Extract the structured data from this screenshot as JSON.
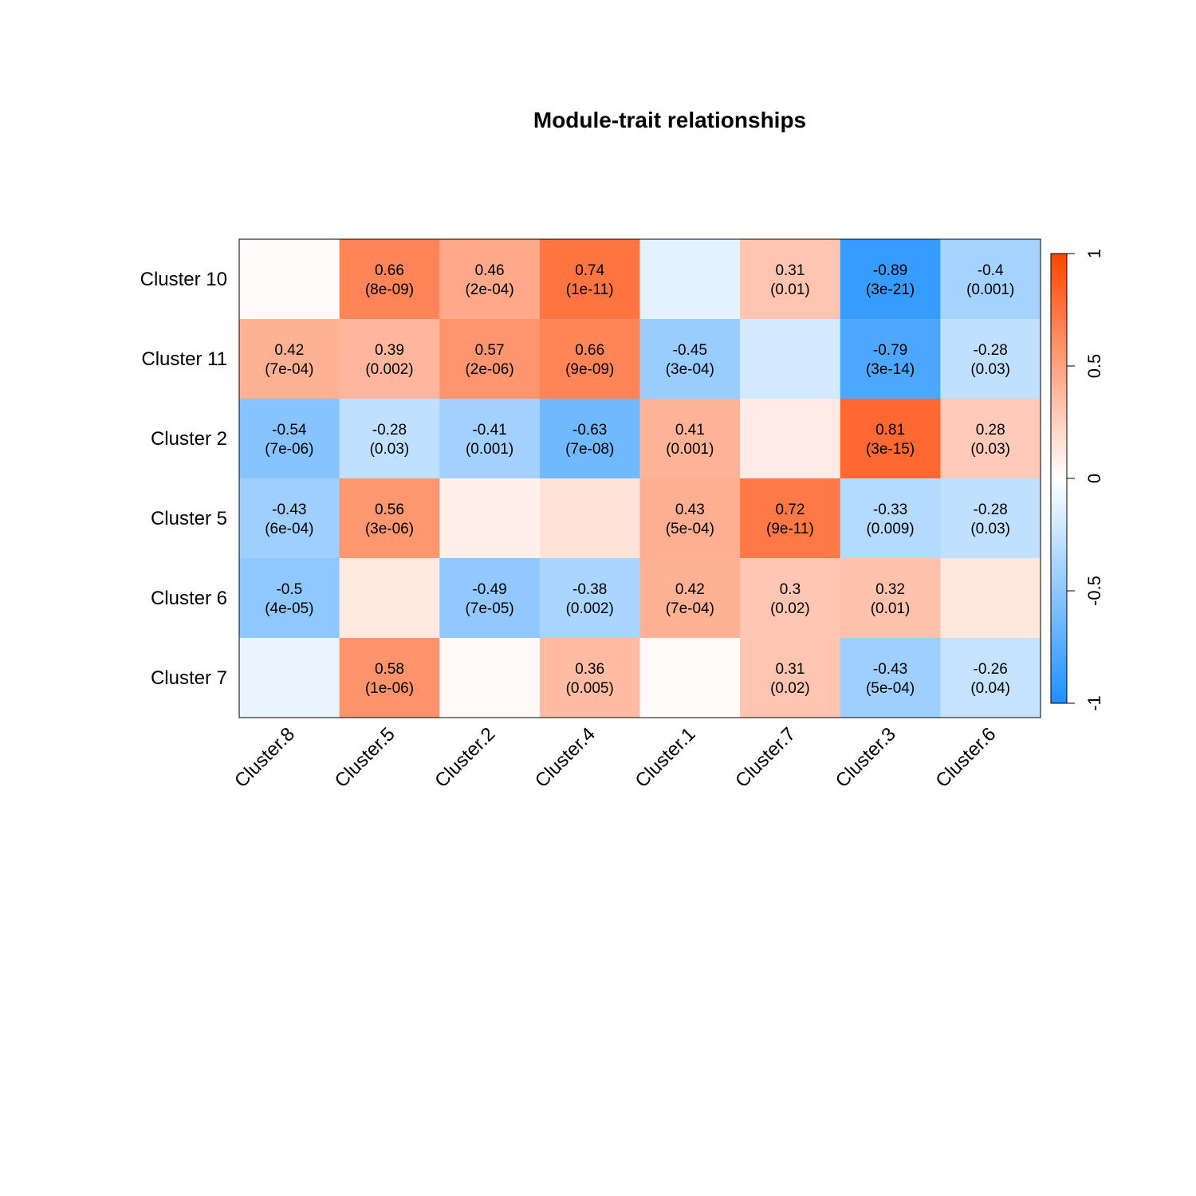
{
  "chart_data": {
    "type": "heatmap",
    "title": "Module-trait relationships",
    "columns": [
      "Cluster.8",
      "Cluster.5",
      "Cluster.2",
      "Cluster.4",
      "Cluster.1",
      "Cluster.7",
      "Cluster.3",
      "Cluster.6"
    ],
    "rows": [
      "Cluster 10",
      "Cluster 11",
      "Cluster 2",
      "Cluster 5",
      "Cluster 6",
      "Cluster 7"
    ],
    "values": [
      [
        0.02,
        0.66,
        0.46,
        0.74,
        -0.12,
        0.31,
        -0.89,
        -0.4
      ],
      [
        0.42,
        0.39,
        0.57,
        0.66,
        -0.45,
        -0.2,
        -0.79,
        -0.28
      ],
      [
        -0.54,
        -0.28,
        -0.41,
        -0.63,
        0.41,
        0.1,
        0.81,
        0.28
      ],
      [
        -0.43,
        0.56,
        0.08,
        0.15,
        0.43,
        0.72,
        -0.33,
        -0.28
      ],
      [
        -0.5,
        0.12,
        -0.49,
        -0.38,
        0.42,
        0.3,
        0.32,
        0.13
      ],
      [
        -0.1,
        0.58,
        0.03,
        0.36,
        0.02,
        0.31,
        -0.43,
        -0.26
      ]
    ],
    "labels": [
      [
        "",
        "0.66\n(8e-09)",
        "0.46\n(2e-04)",
        "0.74\n(1e-11)",
        "",
        "0.31\n(0.01)",
        "-0.89\n(3e-21)",
        "-0.4\n(0.001)"
      ],
      [
        "0.42\n(7e-04)",
        "0.39\n(0.002)",
        "0.57\n(2e-06)",
        "0.66\n(9e-09)",
        "-0.45\n(3e-04)",
        "",
        "-0.79\n(3e-14)",
        "-0.28\n(0.03)"
      ],
      [
        "-0.54\n(7e-06)",
        "-0.28\n(0.03)",
        "-0.41\n(0.001)",
        "-0.63\n(7e-08)",
        "0.41\n(0.001)",
        "",
        "0.81\n(3e-15)",
        "0.28\n(0.03)"
      ],
      [
        "-0.43\n(6e-04)",
        "0.56\n(3e-06)",
        "",
        "",
        "0.43\n(5e-04)",
        "0.72\n(9e-11)",
        "-0.33\n(0.009)",
        "-0.28\n(0.03)"
      ],
      [
        "-0.5\n(4e-05)",
        "",
        "-0.49\n(7e-05)",
        "-0.38\n(0.002)",
        "0.42\n(7e-04)",
        "0.3\n(0.02)",
        "0.32\n(0.01)",
        ""
      ],
      [
        "",
        "0.58\n(1e-06)",
        "",
        "0.36\n(0.005)",
        "",
        "0.31\n(0.02)",
        "-0.43\n(5e-04)",
        "-0.26\n(0.04)"
      ]
    ],
    "colorbar": {
      "range": [
        -1,
        1
      ],
      "ticks": [
        -1,
        -0.5,
        0,
        0.5,
        1
      ],
      "tick_labels": [
        "-1",
        "-0.5",
        "0",
        "0.5",
        "1"
      ],
      "low_color": "#1e90ff",
      "mid_color": "#ffffff",
      "high_color": "#ff4500"
    }
  }
}
